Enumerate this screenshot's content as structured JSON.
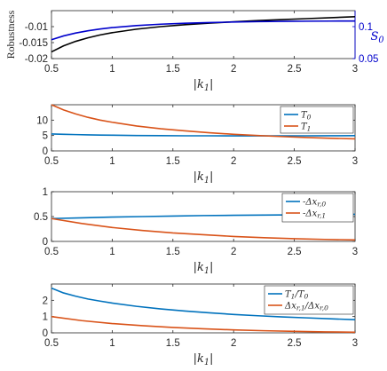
{
  "chart_data": [
    {
      "type": "line",
      "xlabel": "|k_1|",
      "ylabel": "Robustness",
      "y2label": "S_0",
      "xlim": [
        0.5,
        3
      ],
      "ylim": [
        -0.02,
        -0.005
      ],
      "y2lim": [
        0.05,
        0.125
      ],
      "xticks": [
        "0.5",
        "1",
        "1.5",
        "2",
        "2.5",
        "3"
      ],
      "yticks": [
        "-0.02",
        "-0.015",
        "-0.01"
      ],
      "y2ticks": [
        "0.05",
        "0.1"
      ],
      "grid": false,
      "legend": null,
      "series": [
        {
          "axis": "left",
          "color": "#000000",
          "x": [
            0.5,
            0.6,
            0.7,
            0.8,
            0.9,
            1.0,
            1.2,
            1.4,
            1.6,
            1.8,
            2.0,
            2.2,
            2.4,
            2.6,
            2.8,
            3.0
          ],
          "values": [
            -0.0179,
            -0.016,
            -0.0146,
            -0.0135,
            -0.0126,
            -0.0119,
            -0.0108,
            -0.01,
            -0.0094,
            -0.0089,
            -0.0085,
            -0.0081,
            -0.0078,
            -0.0075,
            -0.0072,
            -0.0069
          ]
        },
        {
          "axis": "right",
          "color": "#0000cc",
          "x": [
            0.5,
            0.6,
            0.7,
            0.8,
            0.9,
            1.0,
            1.2,
            1.4,
            1.6,
            1.8,
            2.0,
            2.2,
            2.4,
            2.6,
            2.8,
            3.0
          ],
          "values": [
            0.0795,
            0.0855,
            0.09,
            0.0935,
            0.0963,
            0.0985,
            0.1017,
            0.1038,
            0.1053,
            0.1064,
            0.1072,
            0.1078,
            0.1082,
            0.1085,
            0.1087,
            0.1088
          ]
        }
      ]
    },
    {
      "type": "line",
      "xlabel": "|k_1|",
      "xlim": [
        0.5,
        3
      ],
      "ylim": [
        0,
        15
      ],
      "xticks": [
        "0.5",
        "1",
        "1.5",
        "2",
        "2.5",
        "3"
      ],
      "yticks": [
        "0",
        "5",
        "10"
      ],
      "grid": false,
      "legend": "top-right",
      "series": [
        {
          "name": "T_0",
          "color": "#0072BD",
          "x": [
            0.5,
            0.6,
            0.7,
            0.8,
            0.9,
            1.0,
            1.2,
            1.4,
            1.6,
            1.8,
            2.0,
            2.2,
            2.4,
            2.6,
            2.8,
            3.0
          ],
          "values": [
            5.5,
            5.4,
            5.3,
            5.2,
            5.15,
            5.1,
            5.0,
            4.95,
            4.9,
            4.9,
            4.88,
            4.88,
            4.88,
            4.9,
            4.92,
            4.95
          ]
        },
        {
          "name": "T_1",
          "color": "#D95319",
          "x": [
            0.5,
            0.6,
            0.7,
            0.8,
            0.9,
            1.0,
            1.2,
            1.4,
            1.6,
            1.8,
            2.0,
            2.2,
            2.4,
            2.6,
            2.8,
            3.0
          ],
          "values": [
            15.0,
            13.3,
            12.0,
            10.9,
            10.0,
            9.3,
            8.1,
            7.2,
            6.5,
            5.9,
            5.4,
            5.0,
            4.65,
            4.35,
            4.1,
            3.9
          ]
        }
      ]
    },
    {
      "type": "line",
      "xlabel": "|k_1|",
      "xlim": [
        0.5,
        3
      ],
      "ylim": [
        0,
        1
      ],
      "xticks": [
        "0.5",
        "1",
        "1.5",
        "2",
        "2.5",
        "3"
      ],
      "yticks": [
        "0",
        "0.5",
        "1"
      ],
      "grid": false,
      "legend": "top-right",
      "series": [
        {
          "name": "-Δx_{r,0}",
          "color": "#0072BD",
          "x": [
            0.5,
            0.75,
            1.0,
            1.25,
            1.5,
            1.75,
            2.0,
            2.25,
            2.5,
            2.75,
            3.0
          ],
          "values": [
            0.46,
            0.475,
            0.49,
            0.5,
            0.51,
            0.52,
            0.525,
            0.53,
            0.535,
            0.54,
            0.545
          ]
        },
        {
          "name": "-Δx_{r,1}",
          "color": "#D95319",
          "x": [
            0.5,
            0.75,
            1.0,
            1.25,
            1.5,
            1.75,
            2.0,
            2.25,
            2.5,
            2.75,
            3.0
          ],
          "values": [
            0.46,
            0.36,
            0.28,
            0.22,
            0.17,
            0.135,
            0.1,
            0.075,
            0.055,
            0.04,
            0.03
          ]
        }
      ]
    },
    {
      "type": "line",
      "xlabel": "|k_1|",
      "xlim": [
        0.5,
        3
      ],
      "ylim": [
        0,
        3
      ],
      "xticks": [
        "0.5",
        "1",
        "1.5",
        "2",
        "2.5",
        "3"
      ],
      "yticks": [
        "0",
        "1",
        "2"
      ],
      "grid": false,
      "legend": "top-right",
      "series": [
        {
          "name": "T_1/T_0",
          "color": "#0072BD",
          "x": [
            0.5,
            0.6,
            0.7,
            0.8,
            0.9,
            1.0,
            1.2,
            1.4,
            1.6,
            1.8,
            2.0,
            2.2,
            2.4,
            2.6,
            2.8,
            3.0
          ],
          "values": [
            2.75,
            2.45,
            2.25,
            2.08,
            1.95,
            1.83,
            1.63,
            1.47,
            1.34,
            1.23,
            1.13,
            1.05,
            0.98,
            0.92,
            0.86,
            0.81
          ]
        },
        {
          "name": "Δx_{r,1}/Δx_{r,0}",
          "color": "#D95319",
          "x": [
            0.5,
            0.75,
            1.0,
            1.25,
            1.5,
            1.75,
            2.0,
            2.25,
            2.5,
            2.75,
            3.0
          ],
          "values": [
            1.0,
            0.75,
            0.57,
            0.44,
            0.33,
            0.25,
            0.18,
            0.13,
            0.09,
            0.06,
            0.04
          ]
        }
      ]
    }
  ]
}
